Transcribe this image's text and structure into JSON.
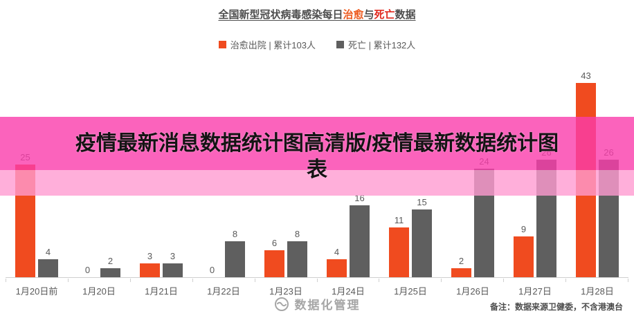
{
  "title": {
    "prefix": "全国新型冠状病毒感染每日",
    "cured": "治愈",
    "and": "与",
    "death": "死亡",
    "suffix": "数据"
  },
  "legend": {
    "items": [
      {
        "label": "治愈出院 | 累计103人"
      },
      {
        "label": "死亡 | 累计132人"
      }
    ]
  },
  "chart_data": {
    "type": "bar",
    "title": "全国新型冠状病毒感染每日治愈与死亡数据",
    "categories": [
      "1月20日前",
      "1月20日",
      "1月21日",
      "1月22日",
      "1月23日",
      "1月24日",
      "1月25日",
      "1月26日",
      "1月27日",
      "1月28日"
    ],
    "series": [
      {
        "name": "治愈出院",
        "key": "cured",
        "color": "#f04b1f",
        "total_label": "累计103人",
        "values": [
          25,
          0,
          3,
          0,
          6,
          4,
          11,
          2,
          9,
          43
        ]
      },
      {
        "name": "死亡",
        "key": "death",
        "color": "#5f5f5f",
        "total_label": "累计132人",
        "values": [
          4,
          2,
          3,
          8,
          8,
          16,
          15,
          24,
          26,
          26
        ]
      }
    ],
    "xlabel": "",
    "ylabel": "",
    "ylim": [
      0,
      47
    ],
    "grid": false,
    "legend_position": "top",
    "data_labels": true
  },
  "overlay": {
    "line1": "疫情最新消息数据统计图高清版/疫情最新数据统计图",
    "line2": "表"
  },
  "watermark": {
    "text": "数据化管理"
  },
  "footer": {
    "note": "备注：数据来源卫健委，不含港澳台"
  },
  "colors": {
    "cured": "#f04b1f",
    "death": "#5f5f5f",
    "title_cured": "#ed5a1f",
    "title_death": "#e0281e",
    "banner_top": "#fa3cab",
    "banner_bottom": "#ff9bd1",
    "axis_text": "#595959"
  }
}
